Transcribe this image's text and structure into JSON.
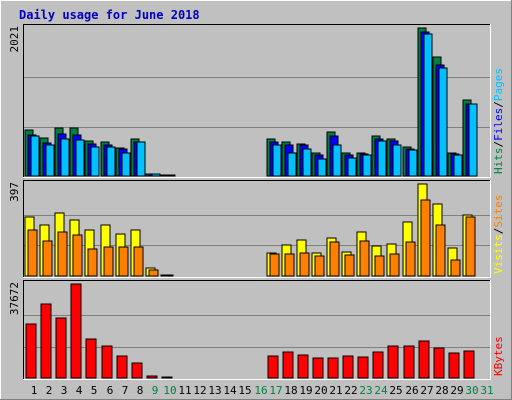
{
  "title": "Daily usage for June 2018",
  "colors": {
    "background": "#C0C0C0",
    "grid": "#808080",
    "title": "#0000C0",
    "hits": "#008040",
    "files": "#0000FF",
    "pages": "#00C0FF",
    "visits": "#FFFF00",
    "sites": "#FF8000",
    "kbytes": "#FF0000",
    "weekday": "#000000",
    "weekend": "#008040"
  },
  "chart_data": [
    {
      "type": "bar",
      "panel": "hits-files-pages",
      "ymax_label": "2021",
      "ylim": [
        0,
        2021
      ],
      "legend": [
        {
          "label": "Hits",
          "color": "#008040"
        },
        {
          "label": "/",
          "color": "#000000"
        },
        {
          "label": "Files",
          "color": "#0000FF"
        },
        {
          "label": "/",
          "color": "#000000"
        },
        {
          "label": "Pages",
          "color": "#00C0FF"
        }
      ],
      "x": [
        1,
        2,
        3,
        4,
        5,
        6,
        7,
        8,
        9,
        10,
        11,
        12,
        13,
        14,
        15,
        16,
        17,
        18,
        19,
        20,
        21,
        22,
        23,
        24,
        25,
        26,
        27,
        28,
        29,
        30,
        31
      ],
      "series": [
        {
          "name": "Hits",
          "values": [
            630,
            520,
            660,
            650,
            480,
            470,
            380,
            500,
            30,
            15,
            0,
            0,
            0,
            0,
            0,
            0,
            500,
            460,
            440,
            310,
            600,
            320,
            320,
            540,
            510,
            390,
            2021,
            1620,
            310,
            1040,
            0
          ]
        },
        {
          "name": "Files",
          "values": [
            560,
            450,
            580,
            560,
            440,
            430,
            370,
            470,
            28,
            12,
            0,
            0,
            0,
            0,
            0,
            0,
            470,
            430,
            420,
            290,
            540,
            280,
            300,
            500,
            480,
            370,
            1960,
            1520,
            300,
            990,
            0
          ]
        },
        {
          "name": "Pages",
          "values": [
            540,
            420,
            510,
            490,
            400,
            400,
            320,
            470,
            25,
            10,
            0,
            0,
            0,
            0,
            0,
            0,
            420,
            320,
            370,
            230,
            420,
            240,
            280,
            480,
            420,
            360,
            1940,
            1480,
            290,
            980,
            0
          ]
        }
      ]
    },
    {
      "type": "bar",
      "panel": "visits-sites",
      "ymax_label": "397",
      "ylim": [
        0,
        397
      ],
      "legend": [
        {
          "label": "Visits",
          "color": "#FFFF00"
        },
        {
          "label": "/",
          "color": "#000000"
        },
        {
          "label": "Sites",
          "color": "#FF8000"
        }
      ],
      "x": [
        1,
        2,
        3,
        4,
        5,
        6,
        7,
        8,
        9,
        10,
        11,
        12,
        13,
        14,
        15,
        16,
        17,
        18,
        19,
        20,
        21,
        22,
        23,
        24,
        25,
        26,
        27,
        28,
        29,
        30,
        31
      ],
      "series": [
        {
          "name": "Visits",
          "values": [
            255,
            220,
            270,
            240,
            200,
            220,
            180,
            200,
            35,
            4,
            0,
            0,
            0,
            0,
            0,
            0,
            100,
            135,
            155,
            100,
            165,
            105,
            190,
            130,
            140,
            235,
            397,
            310,
            120,
            265,
            0
          ]
        },
        {
          "name": "Sites",
          "values": [
            200,
            150,
            190,
            175,
            115,
            125,
            125,
            125,
            25,
            2,
            0,
            0,
            0,
            0,
            0,
            0,
            95,
            95,
            100,
            85,
            145,
            90,
            150,
            85,
            95,
            145,
            330,
            220,
            70,
            255,
            0
          ]
        }
      ]
    },
    {
      "type": "bar",
      "panel": "kbytes",
      "ymax_label": "37672",
      "ylim": [
        0,
        37672
      ],
      "legend": [
        {
          "label": "KBytes",
          "color": "#FF0000"
        }
      ],
      "x": [
        1,
        2,
        3,
        4,
        5,
        6,
        7,
        8,
        9,
        10,
        11,
        12,
        13,
        14,
        15,
        16,
        17,
        18,
        19,
        20,
        21,
        22,
        23,
        24,
        25,
        26,
        27,
        28,
        29,
        30,
        31
      ],
      "series": [
        {
          "name": "KBytes",
          "values": [
            21700,
            29500,
            24000,
            37672,
            15700,
            12900,
            8900,
            6000,
            700,
            500,
            0,
            0,
            0,
            0,
            0,
            0,
            9000,
            10600,
            9400,
            7900,
            8000,
            8900,
            8600,
            10300,
            13000,
            12700,
            14900,
            12100,
            10200,
            10800,
            0
          ]
        }
      ]
    }
  ],
  "x_axis": {
    "labels": [
      "1",
      "2",
      "3",
      "4",
      "5",
      "6",
      "7",
      "8",
      "9",
      "10",
      "11",
      "12",
      "13",
      "14",
      "15",
      "16",
      "17",
      "18",
      "19",
      "20",
      "21",
      "22",
      "23",
      "24",
      "25",
      "26",
      "27",
      "28",
      "29",
      "30",
      "31"
    ],
    "weekend_days": [
      "9",
      "10",
      "16",
      "17",
      "23",
      "24",
      "30",
      "31"
    ]
  }
}
